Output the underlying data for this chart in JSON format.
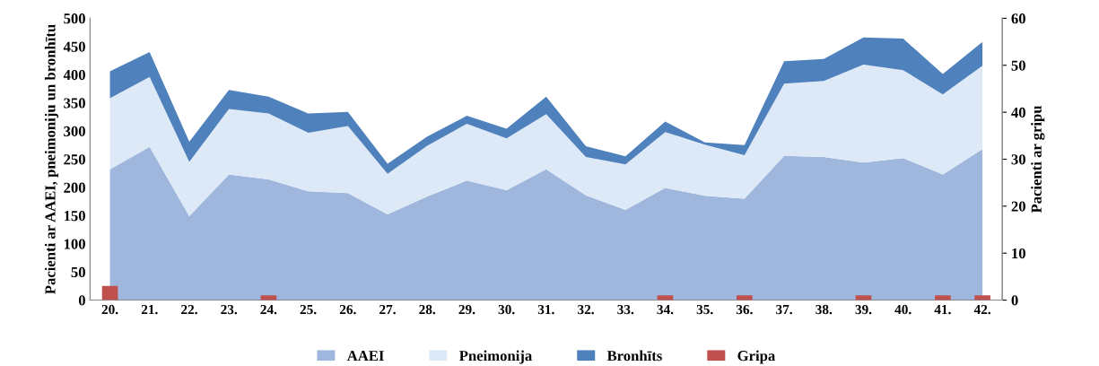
{
  "chart_data": {
    "type": "area",
    "stacked": true,
    "ylabel": "Pacienti ar AAEI, pneimoniju un bronhītu",
    "y2label": "Pacienti ar gripu",
    "categories": [
      "20.",
      "21.",
      "22.",
      "23.",
      "24.",
      "25.",
      "26.",
      "27.",
      "28.",
      "29.",
      "30.",
      "31.",
      "32.",
      "33.",
      "34.",
      "35.",
      "36.",
      "37.",
      "38.",
      "39.",
      "40.",
      "41.",
      "42."
    ],
    "series": [
      {
        "name": "AAEI",
        "color": "#9fb7dd",
        "values": [
          232,
          272,
          149,
          223,
          214,
          193,
          190,
          152,
          184,
          212,
          195,
          232,
          186,
          160,
          199,
          185,
          180,
          256,
          254,
          244,
          252,
          223,
          268
        ]
      },
      {
        "name": "Pneimonija",
        "color": "#dde9f6",
        "values": [
          126,
          124,
          96,
          116,
          117,
          104,
          119,
          72,
          90,
          101,
          92,
          98,
          68,
          81,
          99,
          91,
          77,
          128,
          135,
          174,
          156,
          142,
          148
        ]
      },
      {
        "name": "Bronhīts",
        "color": "#4f81bd",
        "values": [
          48,
          44,
          36,
          34,
          30,
          34,
          25,
          18,
          16,
          14,
          17,
          31,
          19,
          14,
          19,
          4,
          18,
          40,
          39,
          48,
          56,
          36,
          42
        ]
      },
      {
        "name": "Gripa",
        "type": "bar",
        "axis": "y2",
        "color": "#c0504d",
        "values": [
          3,
          0,
          0,
          0,
          1,
          0,
          0,
          0,
          0,
          0,
          0,
          0,
          0,
          0,
          1,
          0,
          1,
          0,
          0,
          1,
          0,
          1,
          1
        ]
      }
    ],
    "ylim": [
      0,
      500
    ],
    "yticks": [
      0,
      50,
      100,
      150,
      200,
      250,
      300,
      350,
      400,
      450,
      500
    ],
    "y2lim": [
      0,
      60
    ],
    "y2ticks": [
      0,
      10,
      20,
      30,
      40,
      50,
      60
    ],
    "grid": false,
    "legend": "bottom"
  }
}
